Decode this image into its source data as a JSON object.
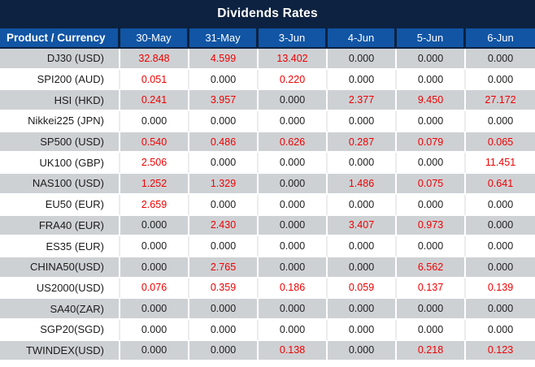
{
  "title": "Dividends Rates",
  "table": {
    "product_header": "Product / Currency",
    "date_columns": [
      "30-May",
      "31-May",
      "3-Jun",
      "4-Jun",
      "5-Jun",
      "6-Jun"
    ],
    "rows": [
      {
        "product": "DJ30 (USD)",
        "values": [
          "32.848",
          "4.599",
          "13.402",
          "0.000",
          "0.000",
          "0.000"
        ]
      },
      {
        "product": "SPI200 (AUD)",
        "values": [
          "0.051",
          "0.000",
          "0.220",
          "0.000",
          "0.000",
          "0.000"
        ]
      },
      {
        "product": "HSI (HKD)",
        "values": [
          "0.241",
          "3.957",
          "0.000",
          "2.377",
          "9.450",
          "27.172"
        ]
      },
      {
        "product": "Nikkei225 (JPN)",
        "values": [
          "0.000",
          "0.000",
          "0.000",
          "0.000",
          "0.000",
          "0.000"
        ]
      },
      {
        "product": "SP500 (USD)",
        "values": [
          "0.540",
          "0.486",
          "0.626",
          "0.287",
          "0.079",
          "0.065"
        ]
      },
      {
        "product": "UK100 (GBP)",
        "values": [
          "2.506",
          "0.000",
          "0.000",
          "0.000",
          "0.000",
          "11.451"
        ]
      },
      {
        "product": "NAS100 (USD)",
        "values": [
          "1.252",
          "1.329",
          "0.000",
          "1.486",
          "0.075",
          "0.641"
        ]
      },
      {
        "product": "EU50 (EUR)",
        "values": [
          "2.659",
          "0.000",
          "0.000",
          "0.000",
          "0.000",
          "0.000"
        ]
      },
      {
        "product": "FRA40 (EUR)",
        "values": [
          "0.000",
          "2.430",
          "0.000",
          "3.407",
          "0.973",
          "0.000"
        ]
      },
      {
        "product": "ES35 (EUR)",
        "values": [
          "0.000",
          "0.000",
          "0.000",
          "0.000",
          "0.000",
          "0.000"
        ]
      },
      {
        "product": "CHINA50(USD)",
        "values": [
          "0.000",
          "2.765",
          "0.000",
          "0.000",
          "6.562",
          "0.000"
        ]
      },
      {
        "product": "US2000(USD)",
        "values": [
          "0.076",
          "0.359",
          "0.186",
          "0.059",
          "0.137",
          "0.139"
        ]
      },
      {
        "product": "SA40(ZAR)",
        "values": [
          "0.000",
          "0.000",
          "0.000",
          "0.000",
          "0.000",
          "0.000"
        ]
      },
      {
        "product": "SGP20(SGD)",
        "values": [
          "0.000",
          "0.000",
          "0.000",
          "0.000",
          "0.000",
          "0.000"
        ]
      },
      {
        "product": "TWINDEX(USD)",
        "values": [
          "0.000",
          "0.000",
          "0.138",
          "0.000",
          "0.218",
          "0.123"
        ]
      }
    ],
    "zero_value": "0.000"
  },
  "colors": {
    "title_bar": "#0d2240",
    "header_blue": "#1155a4",
    "row_gray": "#ced1d4",
    "value_red": "#f00000",
    "value_black": "#202020"
  }
}
